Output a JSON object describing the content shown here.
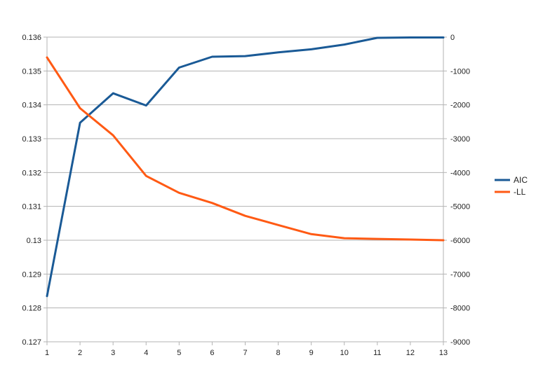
{
  "chart_data": {
    "type": "line",
    "title": "",
    "xlabel": "",
    "ylabel_left": "",
    "ylabel_right": "",
    "x": [
      1,
      2,
      3,
      4,
      5,
      6,
      7,
      8,
      9,
      10,
      11,
      12,
      13
    ],
    "x_ticks": [
      "1",
      "2",
      "3",
      "4",
      "5",
      "6",
      "7",
      "8",
      "9",
      "10",
      "11",
      "12",
      "13"
    ],
    "y_left_lim": [
      0.127,
      0.136
    ],
    "y_left_ticks": [
      "0.136",
      "0.135",
      "0.134",
      "0.133",
      "0.132",
      "0.131",
      "0.13",
      "0.129",
      "0.128",
      "0.127"
    ],
    "y_left_tick_values": [
      0.136,
      0.135,
      0.134,
      0.133,
      0.132,
      0.131,
      0.13,
      0.129,
      0.128,
      0.127
    ],
    "y_right_lim": [
      -9000,
      0
    ],
    "y_right_ticks": [
      "0",
      "-1000",
      "-2000",
      "-3000",
      "-4000",
      "-5000",
      "-6000",
      "-7000",
      "-8000",
      "-9000"
    ],
    "y_right_tick_values": [
      0,
      -1000,
      -2000,
      -3000,
      -4000,
      -5000,
      -6000,
      -7000,
      -8000,
      -9000
    ],
    "grid": "horizontal",
    "legend_position": "right",
    "series": [
      {
        "name": "AIC",
        "axis": "left",
        "color": "#1a5a96",
        "values": [
          0.12835,
          0.13347,
          0.13434,
          0.13398,
          0.1351,
          0.13542,
          0.13544,
          0.13555,
          0.13564,
          0.13578,
          0.13598,
          0.13599,
          0.13599
        ]
      },
      {
        "name": "-LL",
        "axis": "right",
        "color": "#ff5a14",
        "values": [
          -600,
          -2100,
          -2900,
          -4100,
          -4600,
          -4900,
          -5280,
          -5550,
          -5820,
          -5940,
          -5960,
          -5980,
          -6000
        ]
      }
    ]
  }
}
